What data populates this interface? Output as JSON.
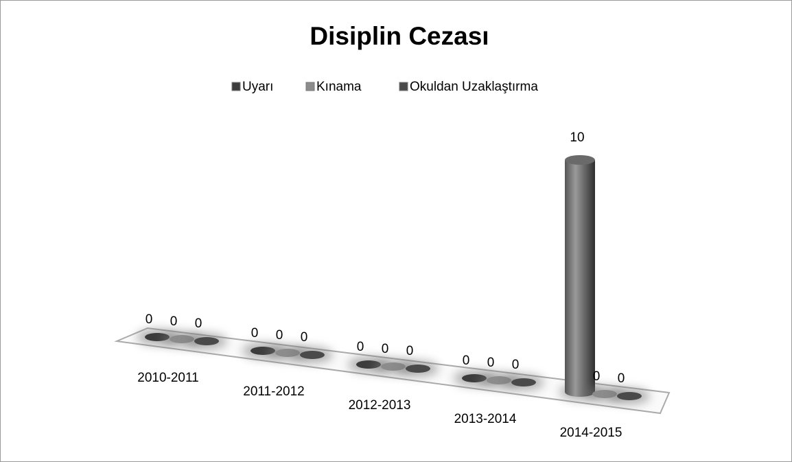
{
  "chart_data": {
    "type": "cylinder3d",
    "title": "Disiplin Cezası",
    "categories": [
      "2010-2011",
      "2011-2012",
      "2012-2013",
      "2013-2014",
      "2014-2015"
    ],
    "series": [
      {
        "name": "Uyarı",
        "color": "#3c3c3c",
        "values": [
          0,
          0,
          0,
          0,
          10
        ]
      },
      {
        "name": "Kınama",
        "color": "#8c8c8c",
        "values": [
          0,
          0,
          0,
          0,
          0
        ]
      },
      {
        "name": "Okuldan Uzaklaştırma",
        "color": "#4a4a4a",
        "values": [
          0,
          0,
          0,
          0,
          0
        ]
      }
    ],
    "legend": "top"
  }
}
